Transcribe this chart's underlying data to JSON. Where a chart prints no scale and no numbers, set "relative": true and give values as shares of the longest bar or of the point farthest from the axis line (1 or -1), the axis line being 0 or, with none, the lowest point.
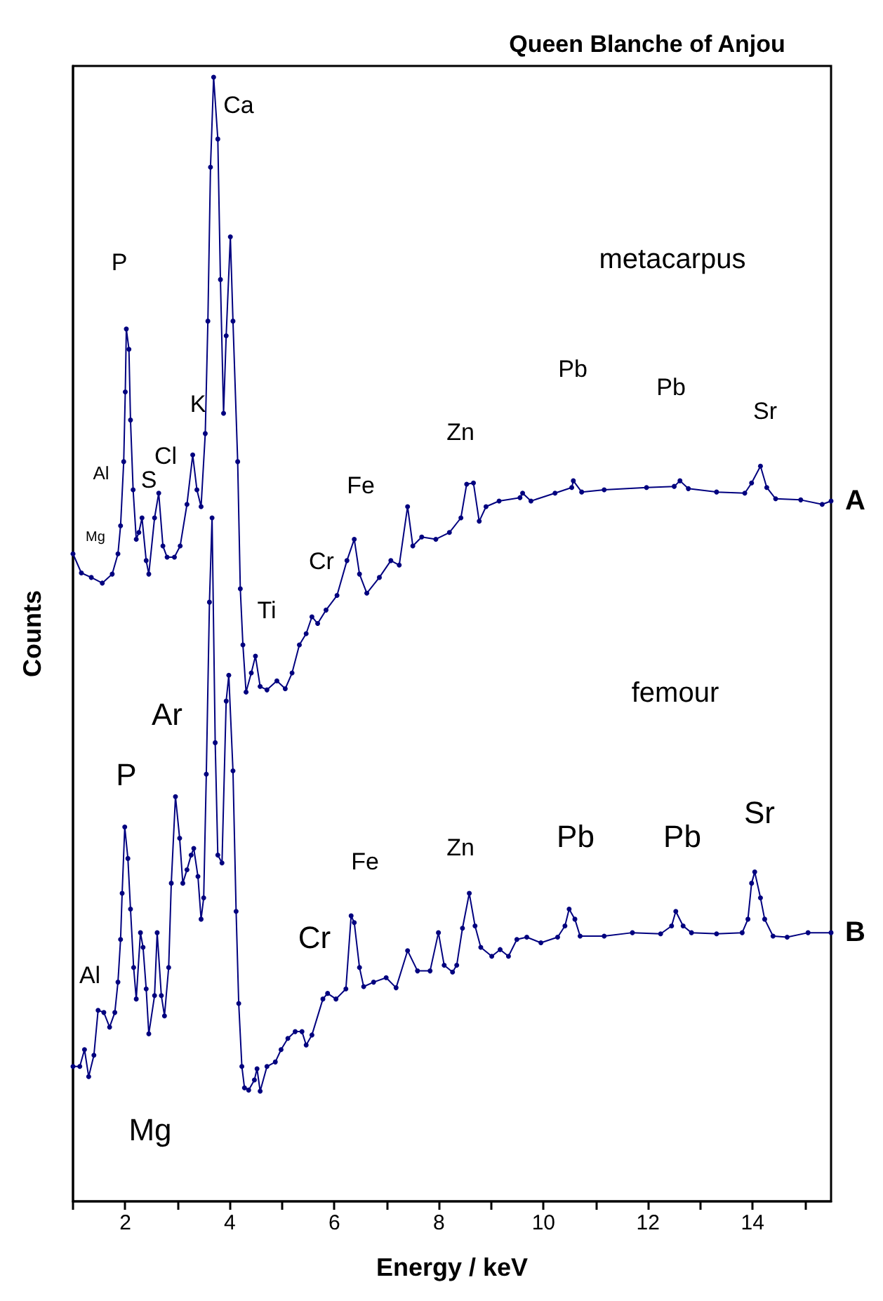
{
  "chart_data": {
    "type": "line",
    "title": "Queen Blanche of Anjou",
    "xlabel": "Energy / keV",
    "ylabel": "Counts",
    "relative": true,
    "marker": "circle",
    "line_style": "solid",
    "xlim": [
      1,
      15.5
    ],
    "xticks": [
      {
        "value": 1,
        "label": null
      },
      2,
      {
        "value": 3,
        "label": null
      },
      4,
      {
        "value": 5,
        "label": null
      },
      6,
      {
        "value": 7,
        "label": null
      },
      8,
      {
        "value": 9,
        "label": null
      },
      10,
      {
        "value": 11,
        "label": null
      },
      12,
      {
        "value": 13,
        "label": null
      },
      14,
      {
        "value": 15,
        "label": null
      }
    ],
    "series": [
      {
        "name": "A",
        "color": "#00007f",
        "x": [
          1.0,
          1.16,
          1.35,
          1.56,
          1.75,
          1.86,
          1.91,
          1.97,
          2.0,
          2.02,
          2.07,
          2.1,
          2.15,
          2.21,
          2.26,
          2.32,
          2.4,
          2.45,
          2.56,
          2.64,
          2.72,
          2.8,
          2.94,
          3.05,
          3.18,
          3.29,
          3.37,
          3.45,
          3.53,
          3.58,
          3.63,
          3.69,
          3.77,
          3.82,
          3.88,
          3.93,
          4.01,
          4.06,
          4.15,
          4.2,
          4.25,
          4.31,
          4.41,
          4.49,
          4.58,
          4.71,
          4.9,
          5.06,
          5.19,
          5.33,
          5.46,
          5.57,
          5.68,
          5.84,
          6.05,
          6.24,
          6.38,
          6.48,
          6.62,
          6.86,
          7.08,
          7.24,
          7.4,
          7.5,
          7.67,
          7.94,
          8.2,
          8.42,
          8.53,
          8.66,
          8.77,
          8.9,
          9.15,
          9.55,
          9.6,
          9.76,
          10.22,
          10.54,
          10.57,
          10.73,
          11.16,
          11.97,
          12.5,
          12.61,
          12.77,
          13.31,
          13.85,
          13.98,
          14.15,
          14.27,
          14.44,
          14.92,
          15.33,
          15.5
        ],
        "values": [
          0.576,
          0.559,
          0.555,
          0.55,
          0.558,
          0.576,
          0.601,
          0.658,
          0.72,
          0.776,
          0.758,
          0.695,
          0.633,
          0.589,
          0.595,
          0.608,
          0.57,
          0.558,
          0.608,
          0.63,
          0.583,
          0.573,
          0.573,
          0.583,
          0.62,
          0.664,
          0.633,
          0.618,
          0.683,
          0.783,
          0.92,
          1.0,
          0.945,
          0.82,
          0.701,
          0.77,
          0.858,
          0.783,
          0.658,
          0.545,
          0.495,
          0.453,
          0.47,
          0.485,
          0.458,
          0.455,
          0.463,
          0.456,
          0.47,
          0.495,
          0.505,
          0.52,
          0.514,
          0.526,
          0.539,
          0.57,
          0.589,
          0.558,
          0.541,
          0.555,
          0.57,
          0.566,
          0.618,
          0.583,
          0.591,
          0.589,
          0.595,
          0.608,
          0.638,
          0.639,
          0.605,
          0.618,
          0.623,
          0.626,
          0.63,
          0.623,
          0.63,
          0.635,
          0.641,
          0.631,
          0.633,
          0.635,
          0.636,
          0.641,
          0.634,
          0.631,
          0.63,
          0.639,
          0.654,
          0.635,
          0.625,
          0.624,
          0.62,
          0.623
        ]
      },
      {
        "name": "B",
        "color": "#00007f",
        "x": [
          1.0,
          1.13,
          1.22,
          1.3,
          1.4,
          1.48,
          1.59,
          1.7,
          1.8,
          1.86,
          1.91,
          1.94,
          1.99,
          2.05,
          2.1,
          2.16,
          2.21,
          2.29,
          2.34,
          2.4,
          2.45,
          2.56,
          2.61,
          2.69,
          2.75,
          2.83,
          2.88,
          2.96,
          3.04,
          3.1,
          3.18,
          3.26,
          3.31,
          3.39,
          3.45,
          3.5,
          3.55,
          3.61,
          3.66,
          3.72,
          3.77,
          3.85,
          3.93,
          3.98,
          4.06,
          4.12,
          4.17,
          4.23,
          4.28,
          4.36,
          4.47,
          4.52,
          4.58,
          4.71,
          4.87,
          4.98,
          5.11,
          5.25,
          5.38,
          5.46,
          5.57,
          5.78,
          5.87,
          6.03,
          6.22,
          6.32,
          6.38,
          6.48,
          6.56,
          6.75,
          6.99,
          7.18,
          7.4,
          7.59,
          7.83,
          7.99,
          8.1,
          8.26,
          8.34,
          8.45,
          8.58,
          8.69,
          8.8,
          9.01,
          9.17,
          9.33,
          9.49,
          9.68,
          9.95,
          10.27,
          10.41,
          10.49,
          10.6,
          10.7,
          11.16,
          11.7,
          12.24,
          12.45,
          12.53,
          12.67,
          12.83,
          13.31,
          13.8,
          13.91,
          13.98,
          14.04,
          14.15,
          14.23,
          14.39,
          14.66,
          15.06,
          15.5
        ],
        "values": [
          0.12,
          0.12,
          0.135,
          0.111,
          0.13,
          0.17,
          0.168,
          0.155,
          0.168,
          0.195,
          0.233,
          0.274,
          0.333,
          0.305,
          0.26,
          0.208,
          0.18,
          0.239,
          0.226,
          0.189,
          0.149,
          0.183,
          0.239,
          0.183,
          0.165,
          0.208,
          0.283,
          0.36,
          0.323,
          0.283,
          0.295,
          0.308,
          0.314,
          0.289,
          0.251,
          0.27,
          0.38,
          0.533,
          0.608,
          0.408,
          0.308,
          0.301,
          0.445,
          0.468,
          0.383,
          0.258,
          0.176,
          0.12,
          0.101,
          0.099,
          0.108,
          0.118,
          0.098,
          0.12,
          0.124,
          0.135,
          0.145,
          0.151,
          0.151,
          0.139,
          0.148,
          0.18,
          0.185,
          0.18,
          0.189,
          0.254,
          0.248,
          0.208,
          0.191,
          0.195,
          0.199,
          0.19,
          0.223,
          0.205,
          0.205,
          0.239,
          0.21,
          0.204,
          0.21,
          0.243,
          0.274,
          0.245,
          0.226,
          0.218,
          0.224,
          0.218,
          0.233,
          0.235,
          0.23,
          0.235,
          0.245,
          0.26,
          0.251,
          0.236,
          0.236,
          0.239,
          0.238,
          0.245,
          0.258,
          0.245,
          0.239,
          0.238,
          0.239,
          0.251,
          0.283,
          0.293,
          0.27,
          0.251,
          0.236,
          0.235,
          0.239,
          0.239
        ]
      }
    ],
    "annotations": [
      "P",
      "Al",
      "Mg",
      "S",
      "Cl",
      "K",
      "Ca",
      "Ti",
      "Cr",
      "Fe",
      "Zn",
      "Pb",
      "Pb",
      "Sr",
      "metacarpus",
      "Al",
      "Mg",
      "P",
      "Ar",
      "Cr",
      "Fe",
      "Zn",
      "Pb",
      "Pb",
      "Sr",
      "femour"
    ]
  }
}
